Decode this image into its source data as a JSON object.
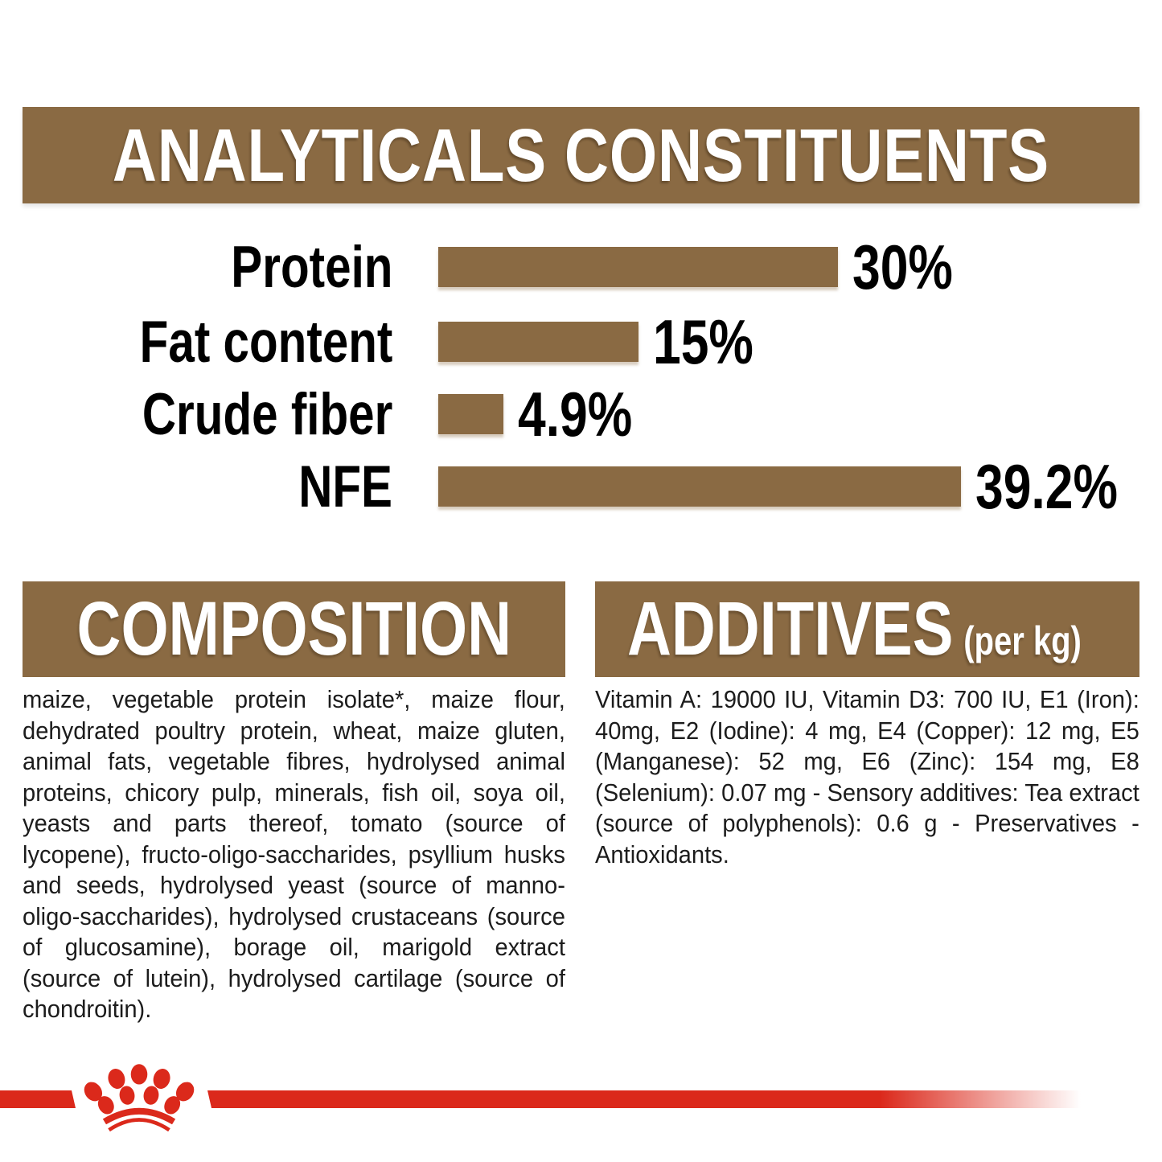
{
  "colors": {
    "brown": "#8A6A43",
    "red": "#DB291B",
    "text": "#1C1C1C"
  },
  "header": {
    "title": "ANALYTICALS CONSTITUENTS"
  },
  "chart_data": {
    "type": "bar",
    "orientation": "horizontal",
    "title": "ANALYTICALS CONSTITUENTS",
    "categories": [
      "Protein",
      "Fat content",
      "Crude fiber",
      "NFE"
    ],
    "values": [
      30,
      15,
      4.9,
      39.2
    ],
    "value_labels": [
      "30%",
      "15%",
      "4.9%",
      "39.2%"
    ],
    "unit": "%",
    "xlim": [
      0,
      42
    ],
    "bar_color": "#8A6A43",
    "grid": "off",
    "legend": "none"
  },
  "composition": {
    "title": "COMPOSITION",
    "text": "maize, vegetable protein isolate*, maize flour, dehydrated poultry protein, wheat, maize gluten, animal fats, vegetable fibres, hydrolysed animal proteins, chicory pulp, minerals, fish oil, soya oil, yeasts and parts thereof, tomato (source of lycopene), fructo-oligo-saccharides, psyllium husks and seeds, hydrolysed yeast (source of manno-oligo-saccharides), hydrolysed crustaceans (source of glucosamine), borage oil, marigold extract (source of lutein), hydrolysed cartilage (source of chondroitin)."
  },
  "additives": {
    "title": "ADDITIVES",
    "subtitle": "(per kg)",
    "text": "Vitamin A: 19000 IU, Vitamin D3: 700 IU, E1 (Iron): 40mg, E2 (Iodine): 4 mg, E4 (Copper): 12 mg, E5 (Manganese): 52 mg, E6 (Zinc): 154 mg, E8 (Selenium): 0.07 mg - Sensory additives: Tea extract (source of polyphenols): 0.6 g - Preservatives - Antioxidants."
  },
  "footer": {
    "logo": "royal-canin-crown"
  }
}
